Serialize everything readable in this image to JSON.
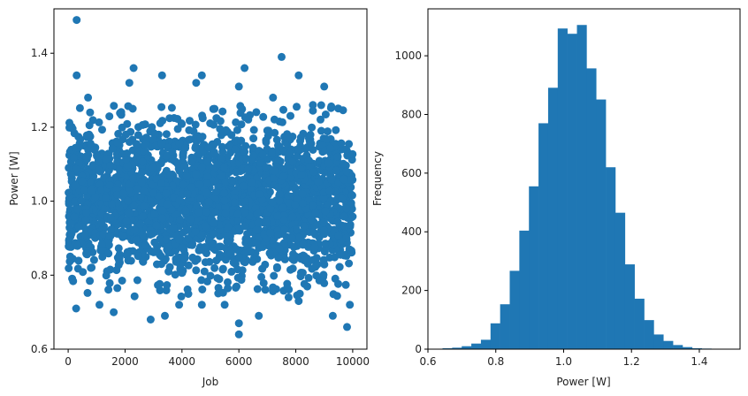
{
  "chart_data": [
    {
      "type": "scatter",
      "xlabel": "Job",
      "ylabel": "Power [W]",
      "xlim": [
        -500,
        10500
      ],
      "ylim": [
        0.6,
        1.52
      ],
      "xticks": [
        "0",
        "2000",
        "4000",
        "6000",
        "8000",
        "10000"
      ],
      "xtick_values": [
        0,
        2000,
        4000,
        6000,
        8000,
        10000
      ],
      "yticks": [
        "0.6",
        "0.8",
        "1.0",
        "1.2",
        "1.4"
      ],
      "ytick_values": [
        0.6,
        0.8,
        1.0,
        1.2,
        1.4
      ],
      "color": "#1f77b4",
      "n_points": 10000,
      "bulk_range": [
        0.85,
        1.2
      ],
      "outliers": [
        [
          300,
          1.49
        ],
        [
          300,
          1.34
        ],
        [
          700,
          1.28
        ],
        [
          2300,
          1.36
        ],
        [
          2150,
          1.32
        ],
        [
          3300,
          1.34
        ],
        [
          4700,
          1.34
        ],
        [
          6200,
          1.36
        ],
        [
          7500,
          1.39
        ],
        [
          8100,
          1.34
        ],
        [
          9000,
          1.31
        ],
        [
          4500,
          1.32
        ],
        [
          6000,
          1.31
        ],
        [
          7200,
          1.28
        ],
        [
          8600,
          1.26
        ],
        [
          9800,
          0.66
        ],
        [
          6000,
          0.67
        ],
        [
          6000,
          0.64
        ],
        [
          2900,
          0.68
        ],
        [
          3400,
          0.69
        ],
        [
          1600,
          0.7
        ],
        [
          9300,
          0.69
        ],
        [
          280,
          0.71
        ],
        [
          4700,
          0.72
        ],
        [
          6700,
          0.69
        ],
        [
          8100,
          0.73
        ],
        [
          1100,
          0.72
        ],
        [
          5500,
          0.72
        ],
        [
          9900,
          0.72
        ],
        [
          3900,
          0.72
        ]
      ]
    },
    {
      "type": "bar",
      "subtype": "histogram",
      "xlabel": "Power [W]",
      "ylabel": "Frequency",
      "xlim": [
        0.6,
        1.52
      ],
      "ylim": [
        0,
        1160
      ],
      "xticks": [
        "0.6",
        "0.8",
        "1.0",
        "1.2",
        "1.4"
      ],
      "xtick_values": [
        0.6,
        0.8,
        1.0,
        1.2,
        1.4
      ],
      "yticks": [
        "0",
        "200",
        "400",
        "600",
        "800",
        "1000"
      ],
      "ytick_values": [
        0,
        200,
        400,
        600,
        800,
        1000
      ],
      "color": "#1f77b4",
      "bin_start": 0.643,
      "bin_width": 0.0283,
      "counts": [
        3,
        5,
        10,
        19,
        32,
        88,
        153,
        267,
        404,
        555,
        770,
        891,
        1093,
        1075,
        1105,
        957,
        851,
        620,
        465,
        289,
        172,
        99,
        50,
        28,
        14,
        7,
        3,
        2,
        1,
        1
      ]
    }
  ]
}
